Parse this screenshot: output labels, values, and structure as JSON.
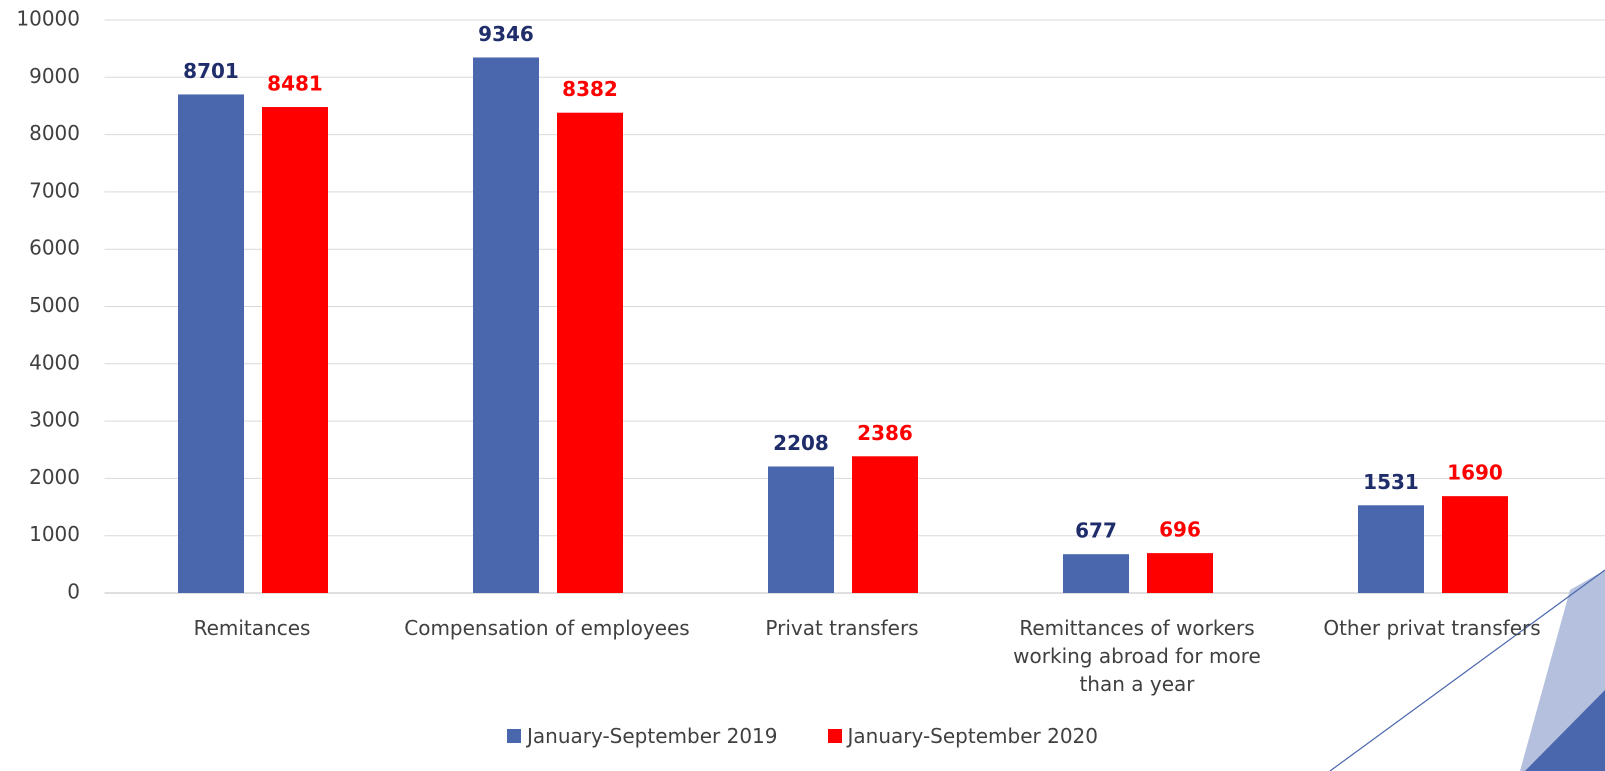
{
  "chart_data": {
    "type": "bar",
    "categories": [
      "Remitances",
      "Compensation of employees",
      "Privat transfers",
      "Remittances of workers working abroad for more than a year",
      "Other privat transfers"
    ],
    "series": [
      {
        "name": "January-September 2019",
        "color": "#4a66ac",
        "label_color": "#1f2d6b",
        "values": [
          8701,
          9346,
          2208,
          677,
          1531
        ]
      },
      {
        "name": "January-September 2020",
        "color": "#ff0000",
        "label_color": "#ff0000",
        "values": [
          8481,
          8382,
          2386,
          696,
          1690
        ]
      }
    ],
    "ylim": [
      0,
      10000
    ],
    "yticks": [
      0,
      1000,
      2000,
      3000,
      4000,
      5000,
      6000,
      7000,
      8000,
      9000,
      10000
    ],
    "grid": true,
    "legend": "bottom"
  }
}
